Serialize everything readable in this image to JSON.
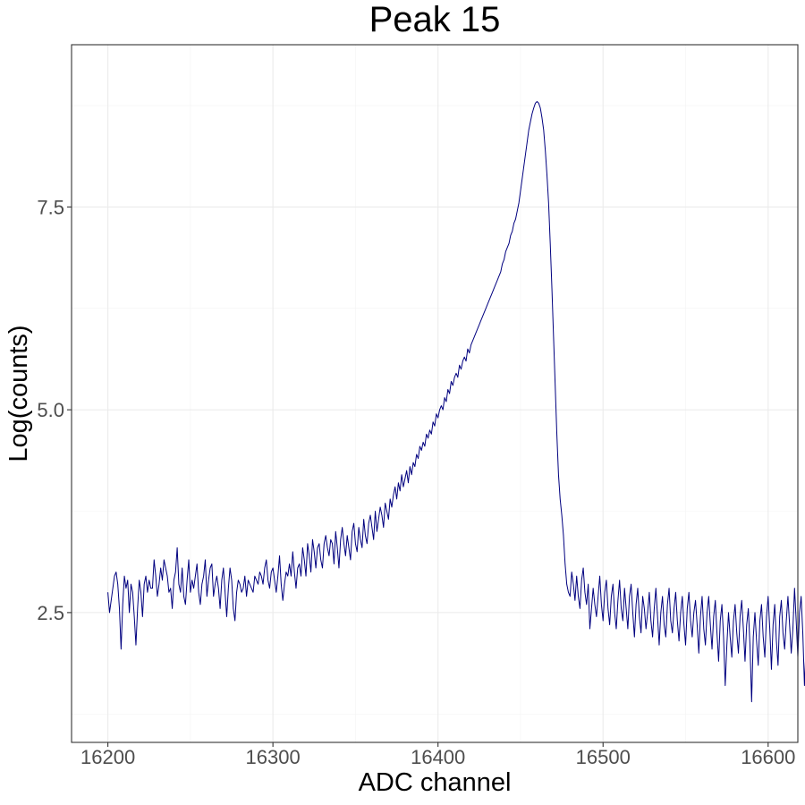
{
  "chart_data": {
    "type": "line",
    "title": "Peak 15",
    "xlabel": "ADC channel",
    "ylabel": "Log(counts)",
    "xlim": [
      16178,
      16618
    ],
    "ylim": [
      0.9,
      9.5
    ],
    "x_ticks": [
      16200,
      16300,
      16400,
      16500,
      16600
    ],
    "x_tick_labels": [
      "16200",
      "16300",
      "16400",
      "16500",
      "16600"
    ],
    "y_ticks": [
      2.5,
      5.0,
      7.5
    ],
    "y_tick_labels": [
      "2.5",
      "5.0",
      "7.5"
    ],
    "grid": true,
    "line_color": "#00007f",
    "series": [
      {
        "x_start": 16200,
        "x_step": 1,
        "values": [
          2.75,
          2.5,
          2.65,
          2.8,
          2.95,
          3.0,
          2.85,
          2.55,
          2.05,
          2.6,
          2.95,
          2.8,
          2.9,
          2.5,
          2.85,
          2.75,
          2.45,
          2.1,
          2.55,
          2.9,
          2.75,
          2.45,
          2.85,
          2.95,
          2.75,
          2.9,
          2.8,
          2.8,
          3.15,
          2.95,
          2.7,
          2.85,
          3.05,
          2.9,
          3.15,
          3.05,
          2.95,
          2.75,
          2.8,
          2.55,
          2.9,
          3.0,
          3.3,
          2.85,
          2.75,
          3.05,
          2.7,
          2.6,
          2.9,
          3.15,
          2.75,
          2.9,
          2.8,
          2.95,
          3.1,
          2.75,
          2.6,
          2.85,
          2.95,
          3.15,
          2.7,
          2.9,
          3.05,
          3.1,
          2.7,
          2.85,
          2.95,
          2.8,
          2.55,
          2.9,
          3.05,
          2.75,
          2.45,
          2.8,
          3.05,
          2.9,
          2.55,
          2.4,
          2.75,
          2.9,
          2.85,
          2.75,
          2.8,
          2.95,
          2.7,
          2.9,
          2.85,
          2.8,
          2.75,
          2.95,
          2.9,
          2.85,
          3.0,
          2.95,
          2.85,
          3.05,
          3.15,
          2.9,
          2.8,
          3.0,
          3.05,
          2.9,
          2.75,
          2.95,
          3.2,
          2.85,
          2.65,
          2.85,
          3.0,
          2.95,
          3.1,
          2.95,
          3.25,
          3.0,
          2.8,
          3.05,
          3.1,
          2.95,
          3.3,
          3.15,
          2.95,
          3.35,
          3.2,
          3.0,
          3.4,
          3.25,
          3.05,
          3.3,
          3.35,
          3.15,
          3.05,
          3.35,
          3.45,
          3.3,
          3.2,
          3.4,
          3.35,
          3.1,
          3.5,
          3.3,
          3.05,
          3.4,
          3.55,
          3.35,
          3.2,
          3.45,
          3.3,
          3.15,
          3.5,
          3.6,
          3.35,
          3.25,
          3.55,
          3.4,
          3.3,
          3.65,
          3.45,
          3.35,
          3.6,
          3.7,
          3.55,
          3.4,
          3.75,
          3.5,
          3.65,
          3.8,
          3.7,
          3.55,
          3.85,
          3.75,
          3.65,
          3.9,
          3.8,
          3.95,
          4.05,
          3.9,
          4.1,
          4.0,
          4.2,
          4.05,
          4.15,
          4.25,
          4.1,
          4.3,
          4.2,
          4.35,
          4.3,
          4.45,
          4.4,
          4.55,
          4.5,
          4.6,
          4.55,
          4.7,
          4.65,
          4.75,
          4.7,
          4.85,
          4.8,
          4.95,
          4.9,
          5.0,
          5.05,
          5.0,
          5.15,
          5.1,
          5.25,
          5.2,
          5.35,
          5.3,
          5.4,
          5.45,
          5.4,
          5.55,
          5.5,
          5.6,
          5.65,
          5.6,
          5.75,
          5.7,
          5.8,
          5.85,
          5.9,
          5.95,
          6.0,
          6.05,
          6.1,
          6.15,
          6.2,
          6.25,
          6.3,
          6.35,
          6.4,
          6.45,
          6.5,
          6.55,
          6.6,
          6.65,
          6.7,
          6.8,
          6.85,
          6.95,
          7.0,
          7.05,
          7.15,
          7.2,
          7.3,
          7.35,
          7.45,
          7.55,
          7.7,
          7.85,
          8.0,
          8.15,
          8.3,
          8.45,
          8.55,
          8.65,
          8.72,
          8.78,
          8.8,
          8.78,
          8.72,
          8.6,
          8.45,
          8.2,
          7.9,
          7.55,
          7.05,
          6.5,
          5.9,
          5.3,
          4.7,
          4.2,
          3.9,
          3.7,
          3.45,
          3.1,
          2.85,
          2.75,
          2.7,
          3.0,
          2.85,
          2.65,
          2.95,
          2.7,
          2.55,
          2.9,
          3.05,
          2.75,
          2.6,
          2.85,
          2.3,
          2.55,
          2.8,
          2.6,
          2.45,
          2.7,
          2.95,
          2.6,
          2.4,
          2.75,
          2.9,
          2.55,
          2.35,
          2.7,
          2.85,
          2.5,
          2.3,
          2.65,
          2.9,
          2.55,
          2.4,
          2.8,
          2.55,
          2.3,
          2.7,
          2.85,
          2.5,
          2.2,
          2.6,
          2.8,
          2.45,
          2.25,
          2.7,
          2.55,
          2.3,
          2.5,
          2.75,
          2.4,
          2.2,
          2.55,
          2.8,
          2.45,
          2.1,
          2.5,
          2.7,
          2.35,
          2.2,
          2.6,
          2.8,
          2.4,
          2.25,
          2.55,
          2.75,
          2.4,
          2.15,
          2.5,
          2.7,
          2.35,
          2.1,
          2.55,
          2.75,
          2.4,
          2.2,
          2.5,
          2.65,
          2.35,
          2.0,
          2.45,
          2.7,
          2.3,
          2.1,
          2.5,
          2.7,
          2.35,
          2.05,
          2.45,
          2.65,
          2.25,
          1.9,
          2.4,
          2.6,
          2.2,
          1.6,
          2.1,
          2.5,
          2.2,
          1.95,
          2.4,
          2.6,
          2.25,
          2.0,
          2.45,
          2.65,
          2.3,
          1.9,
          2.35,
          2.55,
          2.1,
          1.4,
          2.2,
          2.5,
          2.15,
          1.85,
          2.4,
          2.6,
          2.2,
          1.95,
          2.45,
          2.7,
          2.3,
          1.8,
          2.35,
          2.6,
          2.15,
          1.85,
          2.45,
          2.65,
          2.25,
          2.05,
          2.4,
          2.7,
          2.35,
          2.0,
          2.3,
          2.8,
          2.4,
          1.95,
          2.5,
          2.7,
          2.25,
          1.6,
          2.1,
          2.5,
          2.15,
          1.4,
          2.2,
          2.55,
          2.4
        ]
      }
    ]
  }
}
